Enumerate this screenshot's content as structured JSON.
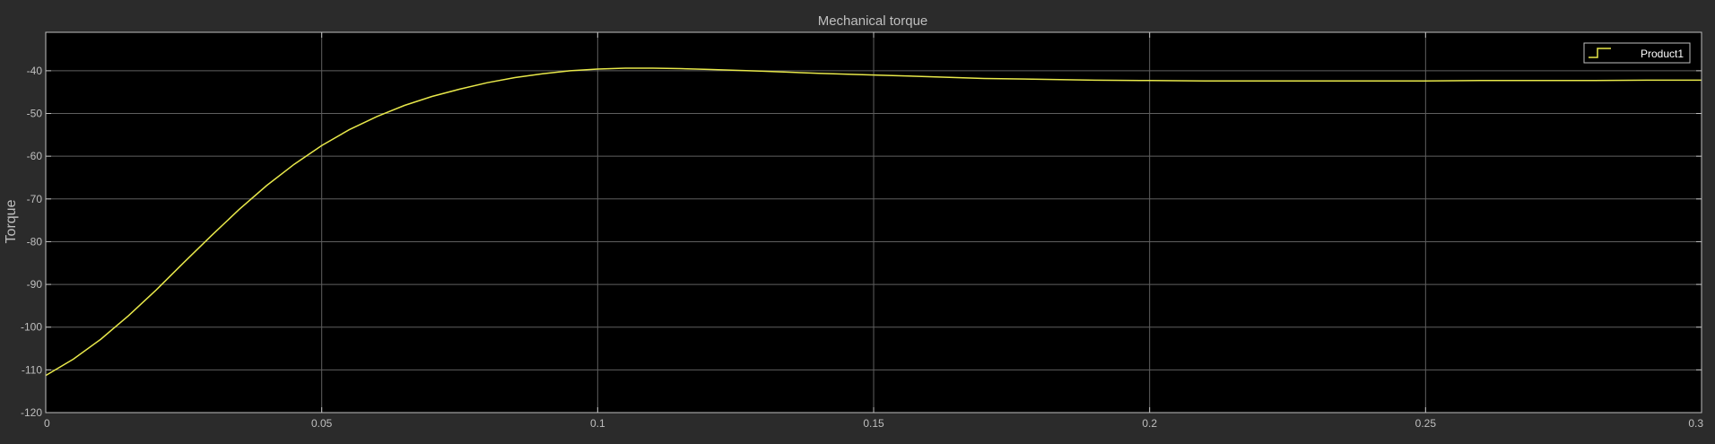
{
  "colors": {
    "background": "#2b2b2b",
    "plot_area": "#000000",
    "grid": "#5f5f5f",
    "axis": "#bfbfbf",
    "text": "#bfbfbf",
    "series": "#e8e84a"
  },
  "legend": {
    "label": "Product1",
    "icon": "step-line-icon"
  },
  "chart_data": {
    "type": "line",
    "title": "Mechanical torque",
    "xlabel": "",
    "ylabel": "Torque",
    "xlim": [
      0,
      0.3
    ],
    "ylim": [
      -120,
      -31
    ],
    "xticks": [
      0,
      0.05,
      0.1,
      0.15,
      0.2,
      0.25,
      0.3
    ],
    "xtick_labels": [
      "0",
      "0.05",
      "0.1",
      "0.15",
      "0.2",
      "0.25",
      "0.3"
    ],
    "yticks": [
      -120,
      -110,
      -100,
      -90,
      -80,
      -70,
      -60,
      -50,
      -40
    ],
    "ytick_labels": [
      "-120",
      "-110",
      "-100",
      "-90",
      "-80",
      "-70",
      "-60",
      "-50",
      "-40"
    ],
    "grid": true,
    "legend_position": "top-right",
    "series": [
      {
        "name": "Product1",
        "x": [
          0,
          0.005,
          0.01,
          0.015,
          0.02,
          0.025,
          0.03,
          0.035,
          0.04,
          0.045,
          0.05,
          0.055,
          0.06,
          0.065,
          0.07,
          0.075,
          0.08,
          0.085,
          0.09,
          0.095,
          0.1,
          0.105,
          0.11,
          0.115,
          0.12,
          0.13,
          0.14,
          0.15,
          0.16,
          0.17,
          0.18,
          0.19,
          0.2,
          0.21,
          0.22,
          0.23,
          0.24,
          0.25,
          0.26,
          0.27,
          0.28,
          0.29,
          0.3
        ],
        "y": [
          -111.3,
          -107.5,
          -102.8,
          -97.3,
          -91.3,
          -84.9,
          -78.6,
          -72.5,
          -66.9,
          -61.9,
          -57.5,
          -53.8,
          -50.7,
          -48.1,
          -46.0,
          -44.3,
          -42.8,
          -41.6,
          -40.7,
          -40.0,
          -39.6,
          -39.4,
          -39.4,
          -39.5,
          -39.7,
          -40.1,
          -40.6,
          -41.0,
          -41.4,
          -41.8,
          -42.0,
          -42.2,
          -42.3,
          -42.4,
          -42.4,
          -42.4,
          -42.4,
          -42.4,
          -42.3,
          -42.3,
          -42.3,
          -42.2,
          -42.2
        ]
      }
    ]
  }
}
